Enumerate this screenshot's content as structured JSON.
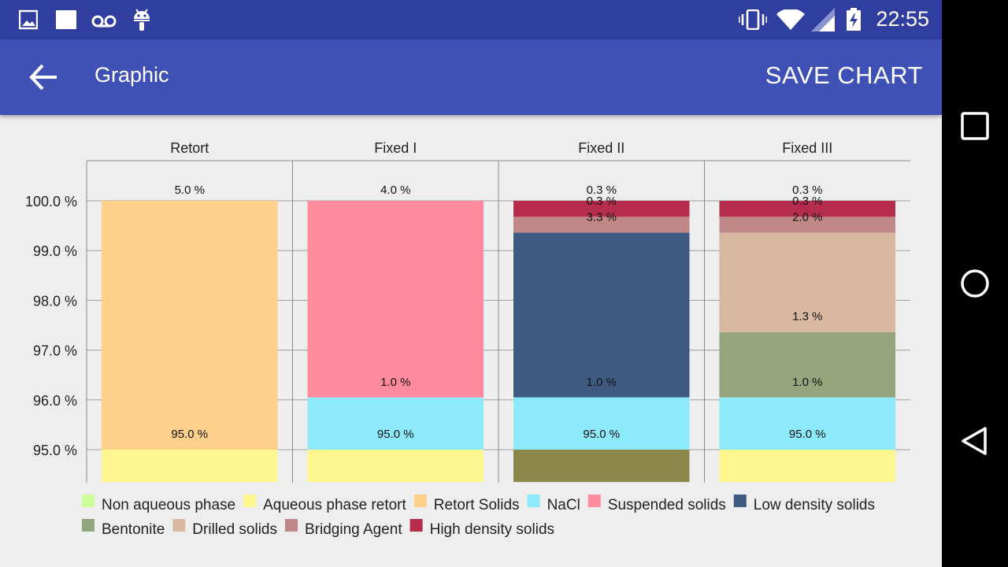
{
  "status_bar": {
    "time": "22:55",
    "left_icons": [
      "image-icon",
      "square-notification-icon",
      "voicemail-icon",
      "android-icon"
    ],
    "right_icons": [
      "vibrate-icon",
      "wifi-icon",
      "signal-icon",
      "battery-charging-icon"
    ]
  },
  "app_bar": {
    "title": "Graphic",
    "action_label": "SAVE CHART",
    "back_icon": "arrow-back-icon",
    "color": "#3f51b5",
    "status_color": "#303f9f"
  },
  "nav_bar": {
    "buttons": [
      "recents-icon",
      "home-icon",
      "back-triangle-icon"
    ]
  },
  "chart_data": {
    "type": "bar",
    "stacked": true,
    "y_axis": {
      "min": 94.35,
      "max": 101.0,
      "ticks": [
        95.0,
        96.0,
        97.0,
        98.0,
        99.0,
        100.0
      ],
      "tick_suffix": " %",
      "decimals": 1
    },
    "categories": [
      "Retort",
      "Fixed I",
      "Fixed II",
      "Fixed III"
    ],
    "bars": [
      {
        "category": "Retort",
        "top_label": "5.0 %",
        "segments": [
          {
            "series": "Aqueous phase retort",
            "from": 94.35,
            "to": 95.0
          },
          {
            "series": "Retort Solids",
            "from": 95.0,
            "to": 100.0
          }
        ],
        "labels": [
          {
            "text": "95.0 %",
            "at": 95.24
          }
        ]
      },
      {
        "category": "Fixed I",
        "top_label": "4.0 %",
        "segments": [
          {
            "series": "Aqueous phase retort",
            "from": 94.35,
            "to": 95.0
          },
          {
            "series": "NaCl",
            "from": 95.0,
            "to": 96.05
          },
          {
            "series": "Suspended solids",
            "from": 96.05,
            "to": 100.0
          }
        ],
        "labels": [
          {
            "text": "95.0 %",
            "at": 95.24
          },
          {
            "text": "1.0 %",
            "at": 96.28
          }
        ]
      },
      {
        "category": "Fixed II",
        "top_label": "0.3 %",
        "segments": [
          {
            "series": "Aqueous phase retort",
            "from": 94.35,
            "to": 95.0,
            "color": "#8b8649"
          },
          {
            "series": "NaCl",
            "from": 95.0,
            "to": 96.05
          },
          {
            "series": "Low density solids",
            "from": 96.05,
            "to": 99.36
          },
          {
            "series": "Bridging Agent",
            "from": 99.36,
            "to": 99.68
          },
          {
            "series": "High density solids",
            "from": 99.68,
            "to": 100.0
          }
        ],
        "labels": [
          {
            "text": "95.0 %",
            "at": 95.24
          },
          {
            "text": "1.0 %",
            "at": 96.28
          },
          {
            "text": "3.3 %",
            "at": 99.6
          },
          {
            "text": "0.3 %",
            "at": 99.92
          }
        ]
      },
      {
        "category": "Fixed III",
        "top_label": "0.3 %",
        "segments": [
          {
            "series": "Aqueous phase retort",
            "from": 94.35,
            "to": 95.0
          },
          {
            "series": "NaCl",
            "from": 95.0,
            "to": 96.05
          },
          {
            "series": "Bentonite",
            "from": 96.05,
            "to": 97.36
          },
          {
            "series": "Drilled solids",
            "from": 97.36,
            "to": 99.36
          },
          {
            "series": "Bridging Agent",
            "from": 99.36,
            "to": 99.68
          },
          {
            "series": "High density solids",
            "from": 99.68,
            "to": 100.0
          }
        ],
        "labels": [
          {
            "text": "95.0 %",
            "at": 95.24
          },
          {
            "text": "1.0 %",
            "at": 96.28
          },
          {
            "text": "1.3 %",
            "at": 97.6
          },
          {
            "text": "2.0 %",
            "at": 99.6
          },
          {
            "text": "0.3 %",
            "at": 99.92
          }
        ]
      }
    ],
    "series": [
      {
        "name": "Non aqueous phase",
        "color": "#ccff99"
      },
      {
        "name": "Aqueous phase retort",
        "color": "#fff68f"
      },
      {
        "name": "Retort Solids",
        "color": "#ffd08c"
      },
      {
        "name": "NaCl",
        "color": "#8ceafa"
      },
      {
        "name": "Suspended solids",
        "color": "#ff8b9c"
      },
      {
        "name": "Low density solids",
        "color": "#3f5a80"
      },
      {
        "name": "Bentonite",
        "color": "#93a57a"
      },
      {
        "name": "Drilled solids",
        "color": "#d8b8a0"
      },
      {
        "name": "Bridging Agent",
        "color": "#c08787"
      },
      {
        "name": "High density solids",
        "color": "#b52c4c"
      }
    ],
    "legend_position": "bottom-left",
    "grid": true
  }
}
